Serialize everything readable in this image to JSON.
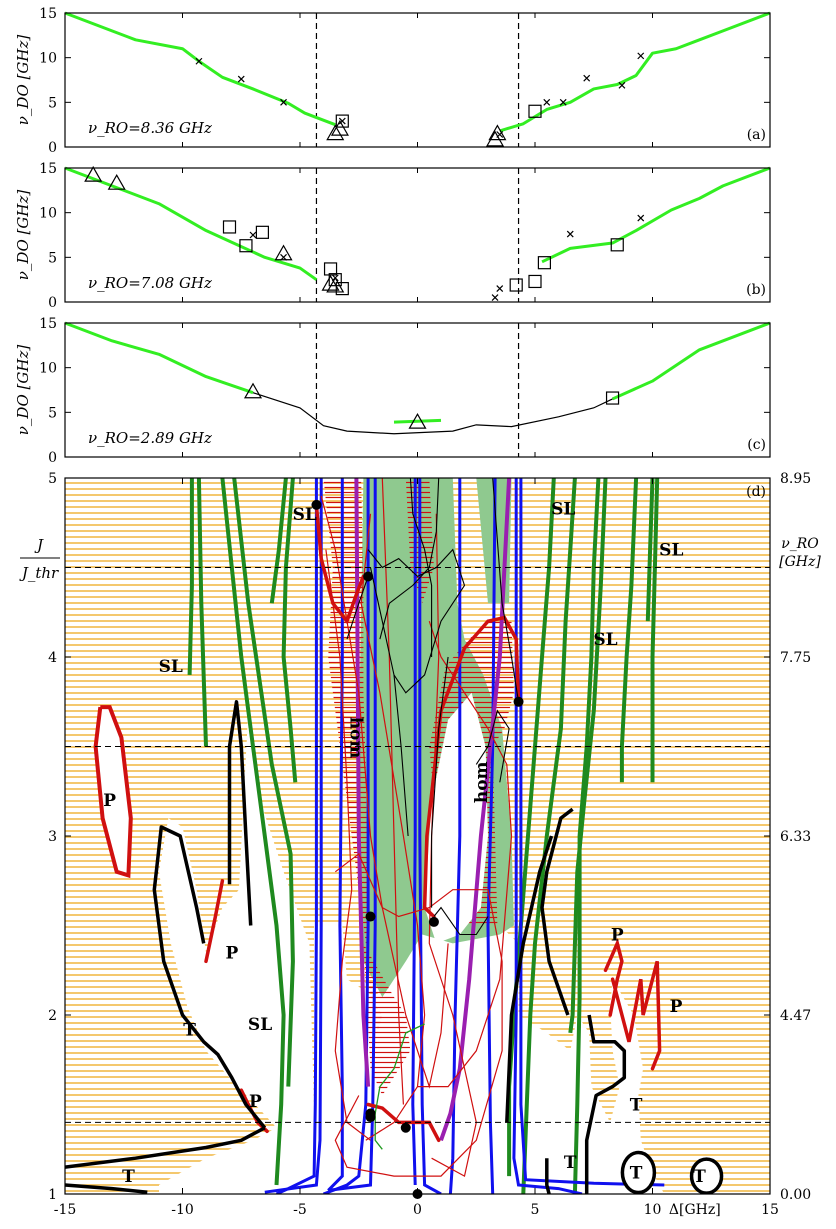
{
  "colors": {
    "green_curve": "#33ee22",
    "dark_green": "#1f8a1f",
    "stable_fill": "#8fc98f",
    "blue": "#1010ee",
    "red": "#d01010",
    "purple": "#9a1fb0",
    "hatch": "#f0b030",
    "black": "#000000"
  },
  "chart_data": [
    {
      "panel": "a",
      "type": "line",
      "panel_label": "(a)",
      "ylabel": "ν_DO [GHz]",
      "annotation": "ν_RO=8.36 GHz",
      "xlim": [
        -15,
        15
      ],
      "ylim": [
        0,
        15
      ],
      "yticks": [
        "0",
        "5",
        "10",
        "15"
      ],
      "dashed_x": [
        -4.3,
        4.3
      ],
      "series": [
        {
          "color": "green",
          "x": [
            -15,
            -13,
            -12,
            -10,
            -9.3,
            -8.3,
            -7,
            -5.5,
            -4.8,
            -3.5
          ],
          "y": [
            15,
            13,
            12,
            11,
            9.6,
            7.8,
            6.5,
            4.9,
            3.8,
            2.5
          ]
        },
        {
          "color": "green",
          "x": [
            3.5,
            4.5,
            5.5,
            6.5,
            7.5,
            8.5,
            9.3,
            10,
            11,
            12,
            13,
            15
          ],
          "y": [
            1.8,
            2.6,
            4.2,
            5,
            6.5,
            7,
            8,
            10.5,
            11,
            12,
            13,
            15
          ]
        }
      ],
      "cross_markers": [
        [
          -9.3,
          9.6
        ],
        [
          -7.5,
          7.6
        ],
        [
          -5.7,
          5.0
        ],
        [
          -3.2,
          2.9
        ],
        [
          5.5,
          5.0
        ],
        [
          6.2,
          5.0
        ],
        [
          7.2,
          7.7
        ],
        [
          8.7,
          6.9
        ],
        [
          9.5,
          10.2
        ],
        [
          3.5,
          1.4
        ]
      ],
      "square_markers": [
        [
          -3.2,
          2.9
        ],
        [
          5.0,
          4.0
        ]
      ],
      "triangle_markers": [
        [
          -3.5,
          1.5
        ],
        [
          -3.3,
          2.0
        ],
        [
          3.3,
          0.8
        ],
        [
          3.4,
          1.5
        ]
      ]
    },
    {
      "panel": "b",
      "type": "line",
      "panel_label": "(b)",
      "ylabel": "ν_DO [GHz]",
      "annotation": "ν_RO=7.08 GHz",
      "xlim": [
        -15,
        15
      ],
      "ylim": [
        0,
        15
      ],
      "yticks": [
        "0",
        "5",
        "10",
        "15"
      ],
      "dashed_x": [
        -4.3,
        4.3
      ],
      "series": [
        {
          "color": "green",
          "x": [
            -15,
            -13,
            -11,
            -9,
            -8,
            -6.5,
            -5,
            -4.3
          ],
          "y": [
            15,
            13,
            11,
            8,
            6.8,
            5,
            3.8,
            2.5
          ]
        },
        {
          "color": "green",
          "x": [
            5.3,
            6.5,
            8.3,
            9.3,
            10.8,
            12,
            13,
            15
          ],
          "y": [
            4.5,
            6,
            6.6,
            8,
            10.3,
            11.6,
            13,
            15
          ]
        }
      ],
      "cross_markers": [
        [
          -7,
          7.5
        ],
        [
          -5.7,
          5.0
        ],
        [
          -3.5,
          2.7
        ],
        [
          3.5,
          1.5
        ],
        [
          6.5,
          7.6
        ],
        [
          9.5,
          9.4
        ],
        [
          3.3,
          0.5
        ]
      ],
      "square_markers": [
        [
          -8,
          8.4
        ],
        [
          -7.3,
          6.3
        ],
        [
          -6.6,
          7.8
        ],
        [
          -3.7,
          3.7
        ],
        [
          -3.5,
          2.5
        ],
        [
          -3.2,
          1.5
        ],
        [
          4.2,
          1.9
        ],
        [
          5.0,
          2.3
        ],
        [
          5.4,
          4.4
        ],
        [
          8.5,
          6.4
        ]
      ],
      "triangle_markers": [
        [
          -13.8,
          14.2
        ],
        [
          -12.8,
          13.3
        ],
        [
          -5.7,
          5.4
        ],
        [
          -3.7,
          2.0
        ],
        [
          -3.5,
          1.8
        ]
      ]
    },
    {
      "panel": "c",
      "type": "line",
      "panel_label": "(c)",
      "ylabel": "ν_DO [GHz]",
      "annotation": "ν_RO=2.89 GHz",
      "xlim": [
        -15,
        15
      ],
      "ylim": [
        0,
        15
      ],
      "yticks": [
        "0",
        "5",
        "10",
        "15"
      ],
      "dashed_x": [
        -4.3,
        4.3
      ],
      "series": [
        {
          "color": "green",
          "x": [
            -15,
            -13,
            -11,
            -9,
            -7
          ],
          "y": [
            15,
            13,
            11.5,
            9,
            7.2
          ]
        },
        {
          "color": "green",
          "x": [
            -1,
            0,
            1
          ],
          "y": [
            3.9,
            4.0,
            4.1
          ]
        },
        {
          "color": "green",
          "x": [
            8.3,
            10,
            12,
            15
          ],
          "y": [
            6.5,
            8.5,
            12,
            15
          ]
        }
      ],
      "black_curve": {
        "x": [
          -7,
          -5,
          -4,
          -3,
          -1,
          1.5,
          2.5,
          4,
          6,
          7.5,
          8.3
        ],
        "y": [
          7.2,
          5.5,
          3.5,
          2.9,
          2.6,
          2.9,
          3.6,
          3.4,
          4.5,
          5.5,
          6.5
        ]
      },
      "square_markers": [
        [
          8.3,
          6.6
        ]
      ],
      "triangle_markers": [
        [
          -7,
          7.3
        ],
        [
          0,
          3.9
        ]
      ]
    },
    {
      "panel": "d",
      "type": "line",
      "panel_label": "(d)",
      "ylabel_num": "J",
      "ylabel_den": "J_thr",
      "ylabel_right_1": "ν_RO",
      "ylabel_right_2": "[GHz]",
      "xlabel": "Δ[GHz]",
      "xlim": [
        -15,
        15
      ],
      "ylim": [
        1,
        5
      ],
      "xticks": [
        "-15",
        "-10",
        "-5",
        "0",
        "5",
        "10",
        "15"
      ],
      "yticks": [
        "1",
        "2",
        "3",
        "4",
        "5"
      ],
      "right_ticks": [
        [
          "0.00",
          1
        ],
        [
          "4.47",
          2
        ],
        [
          "6.33",
          3
        ],
        [
          "7.75",
          4
        ],
        [
          "8.95",
          5
        ]
      ],
      "dashed_y": [
        1.4,
        3.5,
        4.5
      ],
      "region_labels": [
        {
          "text": "SL",
          "x": -4.8,
          "y": 4.8
        },
        {
          "text": "SL",
          "x": -10.5,
          "y": 3.95
        },
        {
          "text": "SL",
          "x": 6.2,
          "y": 4.83
        },
        {
          "text": "SL",
          "x": 10.8,
          "y": 4.6
        },
        {
          "text": "SL",
          "x": 8,
          "y": 4.1
        },
        {
          "text": "SL",
          "x": -6.7,
          "y": 1.95
        },
        {
          "text": "P",
          "x": -13.1,
          "y": 3.2
        },
        {
          "text": "P",
          "x": -7.9,
          "y": 2.35
        },
        {
          "text": "P",
          "x": -6.9,
          "y": 1.52
        },
        {
          "text": "P",
          "x": 8.5,
          "y": 2.45
        },
        {
          "text": "P",
          "x": 11,
          "y": 2.05
        },
        {
          "text": "T",
          "x": -9.7,
          "y": 1.92
        },
        {
          "text": "T",
          "x": 9.3,
          "y": 1.5
        },
        {
          "text": "T",
          "x": 6.5,
          "y": 1.18
        },
        {
          "text": "T",
          "x": 9.3,
          "y": 1.12
        },
        {
          "text": "T",
          "x": 12,
          "y": 1.1
        },
        {
          "text": "T",
          "x": -12.3,
          "y": 1.1
        },
        {
          "text": "hom",
          "x": -2.6,
          "y": 3.55,
          "rotate": 90
        },
        {
          "text": "hom",
          "x": 2.7,
          "y": 3.3,
          "rotate": -90
        }
      ]
    }
  ]
}
